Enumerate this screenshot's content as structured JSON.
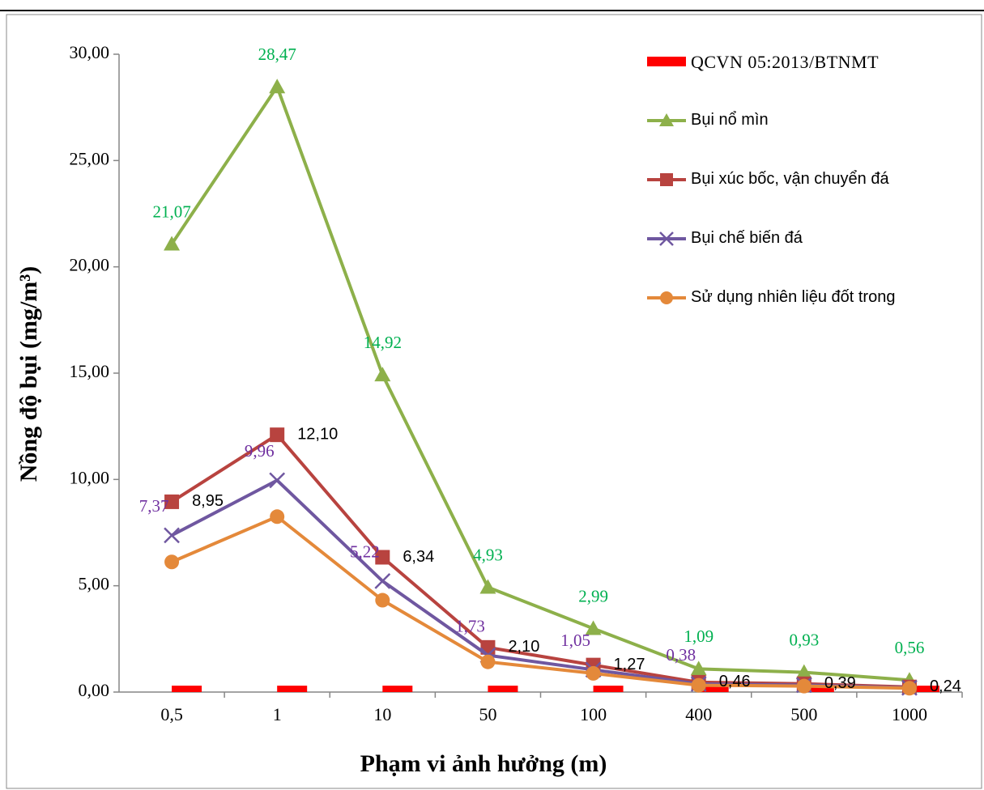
{
  "chart_data": {
    "type": "line",
    "x_label": "Phạm vi ảnh hưởng (m)",
    "y_label": "Nồng độ bụi (mg/m³)",
    "categories": [
      "0,5",
      "1",
      "10",
      "50",
      "100",
      "400",
      "500",
      "1000"
    ],
    "ylim": [
      0,
      30
    ],
    "yticks": [
      {
        "value": 0,
        "label": "0,00"
      },
      {
        "value": 5,
        "label": "5,00"
      },
      {
        "value": 10,
        "label": "10,00"
      },
      {
        "value": 15,
        "label": "15,00"
      },
      {
        "value": 20,
        "label": "20,00"
      },
      {
        "value": 25,
        "label": "25,00"
      },
      {
        "value": 30,
        "label": "30,00"
      }
    ],
    "series": [
      {
        "name": "QCVN 05:2013/BTNMT",
        "type": "bar",
        "color": "#ff0000",
        "values": [
          0.3,
          0.3,
          0.3,
          0.3,
          0.3,
          0.3,
          0.3,
          0.3
        ]
      },
      {
        "name": "Bụi nổ mìn",
        "color": "#8db04a",
        "marker": "triangle",
        "label_color": "#00b050",
        "label_pos": "above",
        "values": [
          21.07,
          28.47,
          14.92,
          4.93,
          2.99,
          1.09,
          0.93,
          0.56
        ],
        "value_labels": [
          "21,07",
          "28,47",
          "14,92",
          "4,93",
          "2,99",
          "1,09",
          "0,93",
          "0,56"
        ]
      },
      {
        "name": "Bụi xúc bốc, vận chuyển đá",
        "color": "#b8433f",
        "marker": "square",
        "label_color": "#000000",
        "label_pos": "right",
        "values": [
          8.95,
          12.1,
          6.34,
          2.1,
          1.27,
          0.46,
          0.39,
          0.24
        ],
        "value_labels": [
          "8,95",
          "12,10",
          "6,34",
          "2,10",
          "1,27",
          "0,46",
          "0,39",
          "0,24"
        ]
      },
      {
        "name": "Bụi chế biến đá",
        "color": "#6f57a0",
        "marker": "x",
        "label_color": "#7030a0",
        "label_pos": "above-left",
        "values": [
          7.37,
          9.96,
          5.22,
          1.73,
          1.05,
          0.38,
          0.33,
          0.2
        ],
        "value_labels": [
          "7,37",
          "9,96",
          "5,22",
          "1,73",
          "1,05",
          "0,38",
          null,
          null
        ]
      },
      {
        "name": "Sử dụng nhiên liệu đốt trong",
        "color": "#e4893a",
        "marker": "circle",
        "values": [
          6.12,
          8.25,
          4.32,
          1.42,
          0.88,
          0.32,
          0.28,
          0.18
        ]
      }
    ]
  }
}
